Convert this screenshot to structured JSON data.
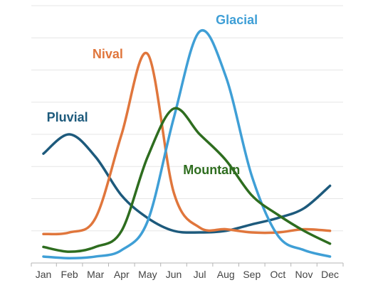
{
  "chart_data": {
    "type": "line",
    "title": "",
    "xlabel": "",
    "ylabel": "",
    "grid": true,
    "ylim": [
      0,
      8
    ],
    "categories": [
      "Jan",
      "Feb",
      "Mar",
      "Apr",
      "May",
      "Jun",
      "Jul",
      "Aug",
      "Sep",
      "Oct",
      "Nov",
      "Dec"
    ],
    "series": [
      {
        "name": "Pluvial",
        "color": "#1d5a7c",
        "values": [
          3.4,
          4.0,
          3.3,
          2.1,
          1.4,
          1.0,
          0.95,
          1.0,
          1.2,
          1.4,
          1.7,
          2.4
        ]
      },
      {
        "name": "Nival",
        "color": "#e0763c",
        "values": [
          0.9,
          0.95,
          1.4,
          4.0,
          6.5,
          2.2,
          1.1,
          1.05,
          0.95,
          0.95,
          1.05,
          1.0
        ]
      },
      {
        "name": "Glacial",
        "color": "#3f9fd6",
        "values": [
          0.2,
          0.15,
          0.2,
          0.4,
          1.3,
          4.5,
          7.2,
          5.8,
          2.7,
          0.85,
          0.4,
          0.2
        ]
      },
      {
        "name": "Mountain",
        "color": "#2e6d1f",
        "values": [
          0.5,
          0.35,
          0.5,
          1.0,
          3.3,
          4.8,
          4.0,
          3.2,
          2.1,
          1.5,
          1.0,
          0.6
        ]
      }
    ]
  }
}
